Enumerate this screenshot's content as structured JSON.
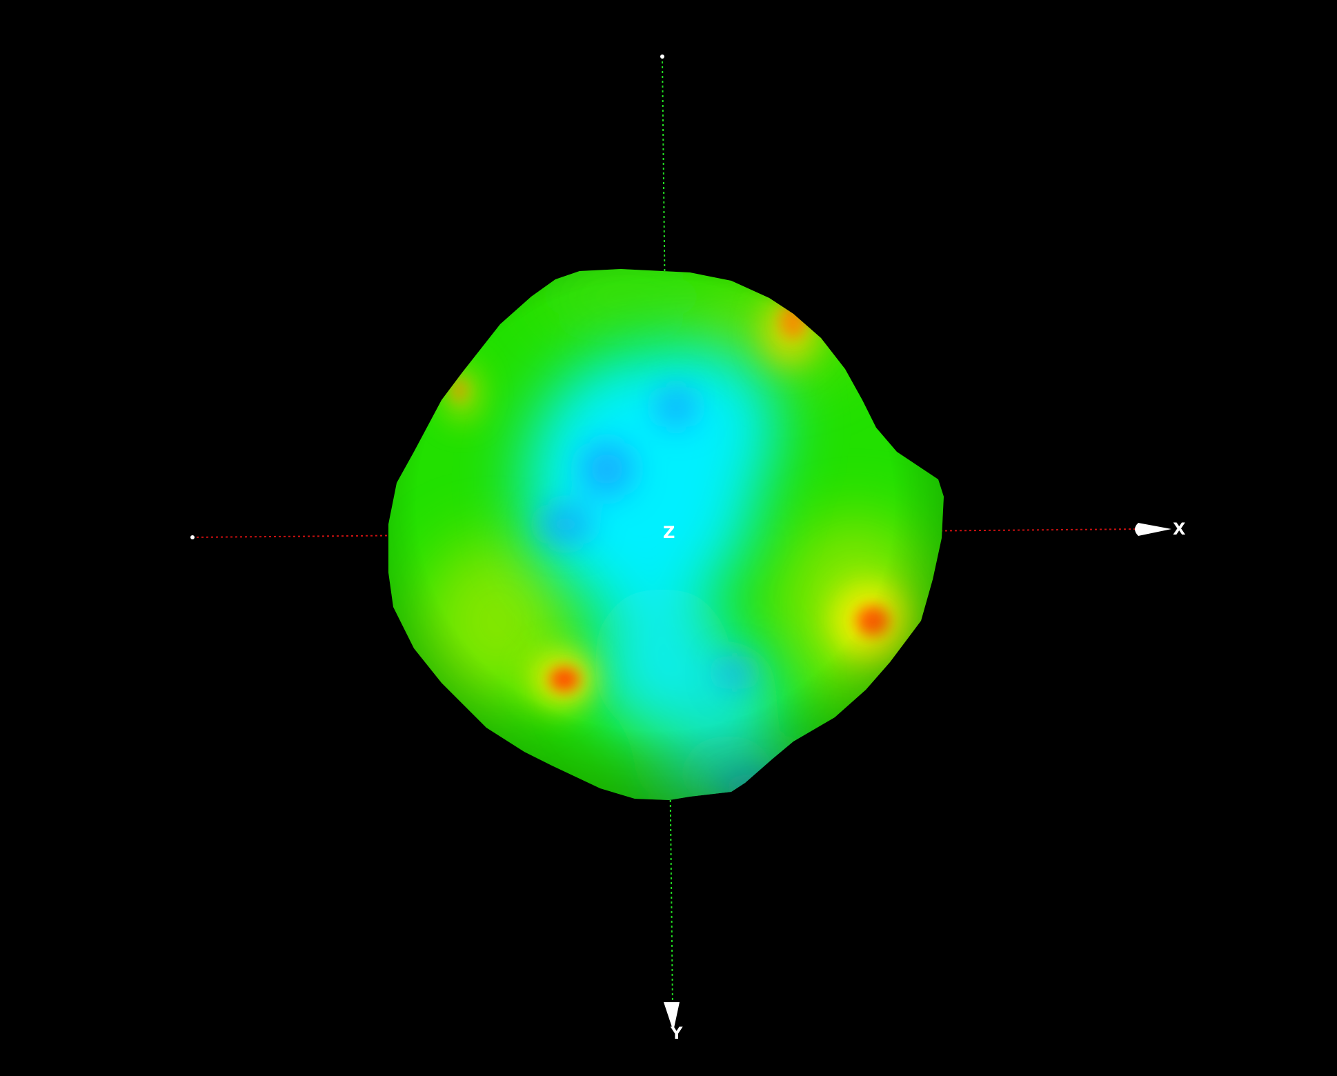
{
  "axes": {
    "x": {
      "label": "X",
      "color": "#d01010",
      "arrow_color": "#ffffff"
    },
    "y": {
      "label": "Y",
      "color": "#20d020",
      "arrow_color": "#ffffff"
    },
    "z": {
      "label": "Z",
      "color": "#ffffff"
    }
  },
  "colors": {
    "background": "#000000",
    "surface_base": "#22e000",
    "surface_low": "#00f0ff",
    "surface_mid": "#20e060",
    "surface_high_1": "#e8f000",
    "surface_high_2": "#ff7a00",
    "surface_high_3": "#ff3000",
    "surface_deep": "#1890ff"
  },
  "object": {
    "name": "color-mapped-sphere",
    "shading": "smooth"
  }
}
